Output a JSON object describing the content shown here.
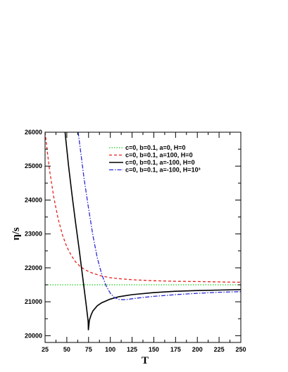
{
  "chart_data": {
    "type": "line",
    "xlabel": "T",
    "ylabel": "η/s",
    "xlim": [
      25,
      250
    ],
    "ylim": [
      19800,
      26000
    ],
    "xticks": [
      25,
      50,
      75,
      100,
      125,
      150,
      175,
      200,
      225,
      250
    ],
    "yticks": [
      20000,
      21000,
      22000,
      23000,
      24000,
      25000,
      26000
    ],
    "grid": false,
    "legend_position": "top-right",
    "series": [
      {
        "name": "c=0, b=0.1, a=0, H=0",
        "color": "#22cc22",
        "dash": "dotted",
        "x": [
          25,
          250
        ],
        "y": [
          21500,
          21500
        ]
      },
      {
        "name": "c=0, b=0.1, a=100, H=0",
        "color": "#e8201c",
        "dash": "dashed",
        "x": [
          25,
          30,
          35,
          40,
          45,
          50,
          55,
          60,
          65,
          70,
          75,
          80,
          90,
          100,
          110,
          125,
          150,
          175,
          200,
          225,
          250
        ],
        "y": [
          26000,
          24900,
          24080,
          23450,
          22970,
          22620,
          22370,
          22180,
          22050,
          21960,
          21890,
          21840,
          21760,
          21710,
          21680,
          21650,
          21620,
          21605,
          21595,
          21585,
          21575
        ]
      },
      {
        "name": "c=0, b=0.1, a=-100, H=0",
        "color": "#000000",
        "dash": "solid",
        "x": [
          48,
          52,
          56,
          60,
          64,
          68,
          72,
          74.5,
          74.8,
          75.2,
          76,
          78,
          80,
          85,
          90,
          100,
          110,
          125,
          150,
          175,
          200,
          225,
          250
        ],
        "y": [
          26000,
          25000,
          24150,
          23350,
          22580,
          21780,
          20960,
          20420,
          20160,
          20270,
          20460,
          20620,
          20730,
          20880,
          20970,
          21080,
          21150,
          21210,
          21270,
          21310,
          21330,
          21345,
          21360
        ]
      },
      {
        "name": "c=0, b=0.1, a=-100, H=10³",
        "color": "#2b2bd6",
        "dash": "dashdot",
        "x": [
          63,
          66,
          70,
          75,
          80,
          85,
          90,
          95,
          100,
          105,
          110,
          115,
          120,
          125,
          135,
          150,
          175,
          200,
          225,
          250
        ],
        "y": [
          26000,
          25400,
          24600,
          23750,
          22950,
          22300,
          21820,
          21480,
          21250,
          21120,
          21070,
          21060,
          21070,
          21090,
          21120,
          21160,
          21210,
          21250,
          21280,
          21300
        ]
      }
    ]
  }
}
